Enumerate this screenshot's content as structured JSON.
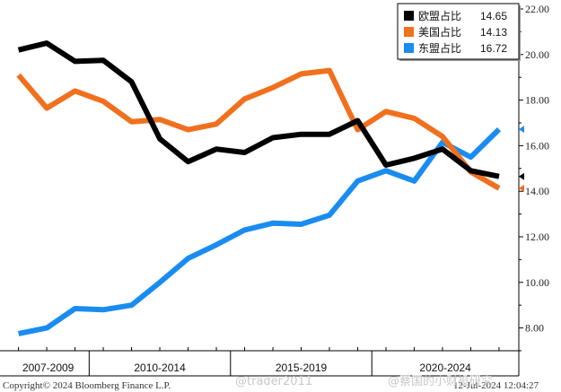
{
  "chart_data": {
    "type": "line",
    "ylim": [
      7,
      22
    ],
    "y_ticks": [
      "8.00",
      "10.00",
      "12.00",
      "14.00",
      "16.00",
      "18.00",
      "20.00",
      "22.00"
    ],
    "y_tick_values": [
      8,
      10,
      12,
      14,
      16,
      18,
      20,
      22
    ],
    "x": [
      2007,
      2008,
      2009,
      2010,
      2011,
      2012,
      2013,
      2014,
      2015,
      2016,
      2017,
      2018,
      2019,
      2020,
      2021,
      2022,
      2023,
      2024
    ],
    "x_range": [
      2006.6,
      2024.7
    ],
    "category_groups": [
      {
        "label": "2007-2009",
        "start": 2006.6,
        "end": 2009.5
      },
      {
        "label": "2010-2014",
        "start": 2009.5,
        "end": 2014.5
      },
      {
        "label": "2015-2019",
        "start": 2014.5,
        "end": 2019.5
      },
      {
        "label": "2020-2024",
        "start": 2019.5,
        "end": 2024.7
      }
    ],
    "series": [
      {
        "name": "欧盟占比",
        "color": "#000000",
        "last_label": "14.65",
        "values": [
          20.2,
          20.5,
          19.7,
          19.75,
          18.8,
          16.3,
          15.3,
          15.85,
          15.7,
          16.35,
          16.5,
          16.5,
          17.1,
          15.15,
          15.45,
          15.85,
          14.9,
          14.65
        ]
      },
      {
        "name": "美国占比",
        "color": "#f0701e",
        "last_label": "14.13",
        "values": [
          19.1,
          17.65,
          18.4,
          17.95,
          17.05,
          17.15,
          16.7,
          16.95,
          18.05,
          18.55,
          19.15,
          19.3,
          16.7,
          17.5,
          17.2,
          16.4,
          14.85,
          14.13
        ]
      },
      {
        "name": "东盟占比",
        "color": "#1a8cf0",
        "last_label": "16.72",
        "values": [
          7.75,
          8.0,
          8.85,
          8.8,
          9.0,
          10.0,
          11.05,
          11.65,
          12.3,
          12.6,
          12.55,
          12.95,
          14.45,
          14.9,
          14.45,
          16.15,
          15.5,
          16.72
        ]
      }
    ],
    "legend_placement": "top-right",
    "grid": false
  },
  "footer": {
    "copyright": "Copyright© 2024 Bloomberg Finance L.P.",
    "timestamp": "12-Jul-2024 12:04:27",
    "watermark_left": "@trader2011",
    "watermark_right": "@蔡国的小财投研究"
  }
}
